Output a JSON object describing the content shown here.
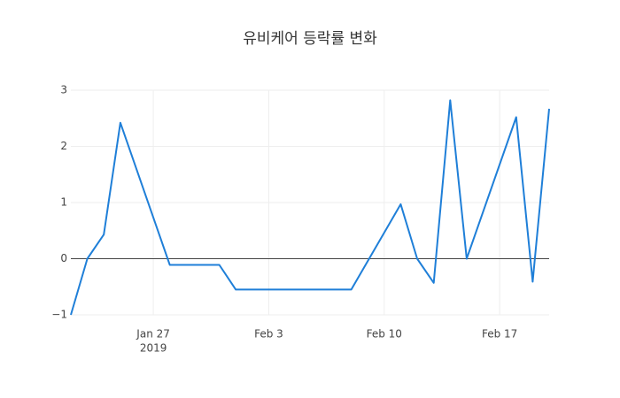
{
  "chart_data": {
    "type": "line",
    "title": "유비케어 등락률 변화",
    "x": [
      "2019-01-22",
      "2019-01-23",
      "2019-01-24",
      "2019-01-25",
      "2019-01-28",
      "2019-01-31",
      "2019-02-01",
      "2019-02-08",
      "2019-02-11",
      "2019-02-12",
      "2019-02-13",
      "2019-02-14",
      "2019-02-15",
      "2019-02-18",
      "2019-02-19",
      "2019-02-20"
    ],
    "series": [
      {
        "color": "#1f7fd8",
        "values": [
          -1,
          0,
          0.43,
          2.42,
          -0.11,
          -0.11,
          -0.55,
          -0.55,
          0.97,
          0,
          -0.43,
          2.82,
          0,
          2.52,
          -0.41,
          2.67
        ]
      }
    ],
    "xlim": [
      "2019-01-22",
      "2019-02-20"
    ],
    "xticks": [
      {
        "value": "2019-01-27",
        "label": "Jan 27"
      },
      {
        "value": "2019-02-03",
        "label": "Feb 3"
      },
      {
        "value": "2019-02-10",
        "label": "Feb 10"
      },
      {
        "value": "2019-02-17",
        "label": "Feb 17"
      }
    ],
    "xtick_sublabel": "2019",
    "ylim": [
      -1,
      3
    ],
    "yticks": [
      {
        "value": -1,
        "label": "−1"
      },
      0,
      1,
      2,
      3
    ],
    "grid": true,
    "zeroline": true
  }
}
